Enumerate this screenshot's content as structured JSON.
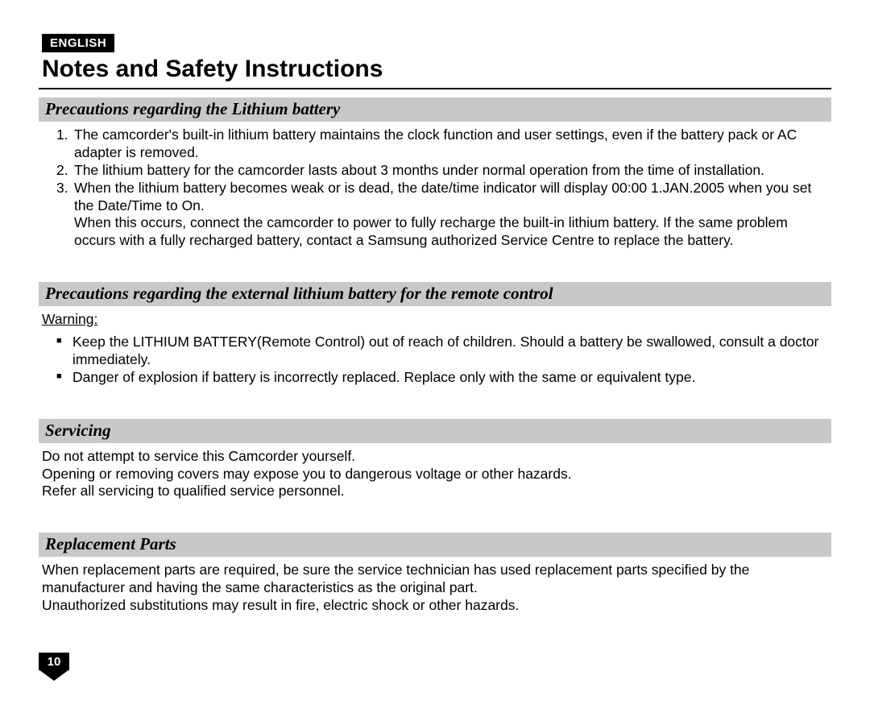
{
  "language_badge": "ENGLISH",
  "main_title": "Notes and Safety Instructions",
  "page_number": "10",
  "colors": {
    "section_header_bg": "#c8c8c8",
    "badge_bg": "#000000",
    "badge_fg": "#ffffff",
    "text": "#000000"
  },
  "sections": {
    "s1": {
      "title": "Precautions regarding the Lithium battery",
      "items": [
        {
          "n": "1.",
          "text": "The camcorder's built-in lithium battery maintains the clock function and user settings, even if the battery pack or AC adapter is removed."
        },
        {
          "n": "2.",
          "text": "The lithium battery for the camcorder lasts about 3 months under normal operation from the time of installation."
        },
        {
          "n": "3.",
          "text": "When the lithium battery becomes weak or is dead, the date/time indicator will display 00:00 1.JAN.2005 when you set the Date/Time to On."
        },
        {
          "n": "",
          "text": "When this occurs, connect the camcorder to power to fully recharge the built-in lithium battery. If the same problem occurs with a fully recharged battery, contact a Samsung authorized Service Centre to replace the battery."
        }
      ]
    },
    "s2": {
      "title": "Precautions regarding the external lithium battery for the remote control",
      "warning_label": "Warning:",
      "bullets": [
        "Keep the LITHIUM BATTERY(Remote Control) out of reach of children. Should a battery be swallowed, consult a doctor immediately.",
        "Danger of explosion if battery is incorrectly replaced. Replace only with the same or equivalent type."
      ]
    },
    "s3": {
      "title": "Servicing",
      "text": "Do not attempt to service this Camcorder yourself.\nOpening or removing covers may expose you to dangerous voltage or other hazards.\nRefer all servicing to qualified service personnel."
    },
    "s4": {
      "title": "Replacement Parts",
      "text": "When replacement parts are required, be sure the service technician has used replacement parts specified by the manufacturer and having the same characteristics as the original part.\nUnauthorized substitutions may result in fire, electric shock or other hazards."
    }
  }
}
